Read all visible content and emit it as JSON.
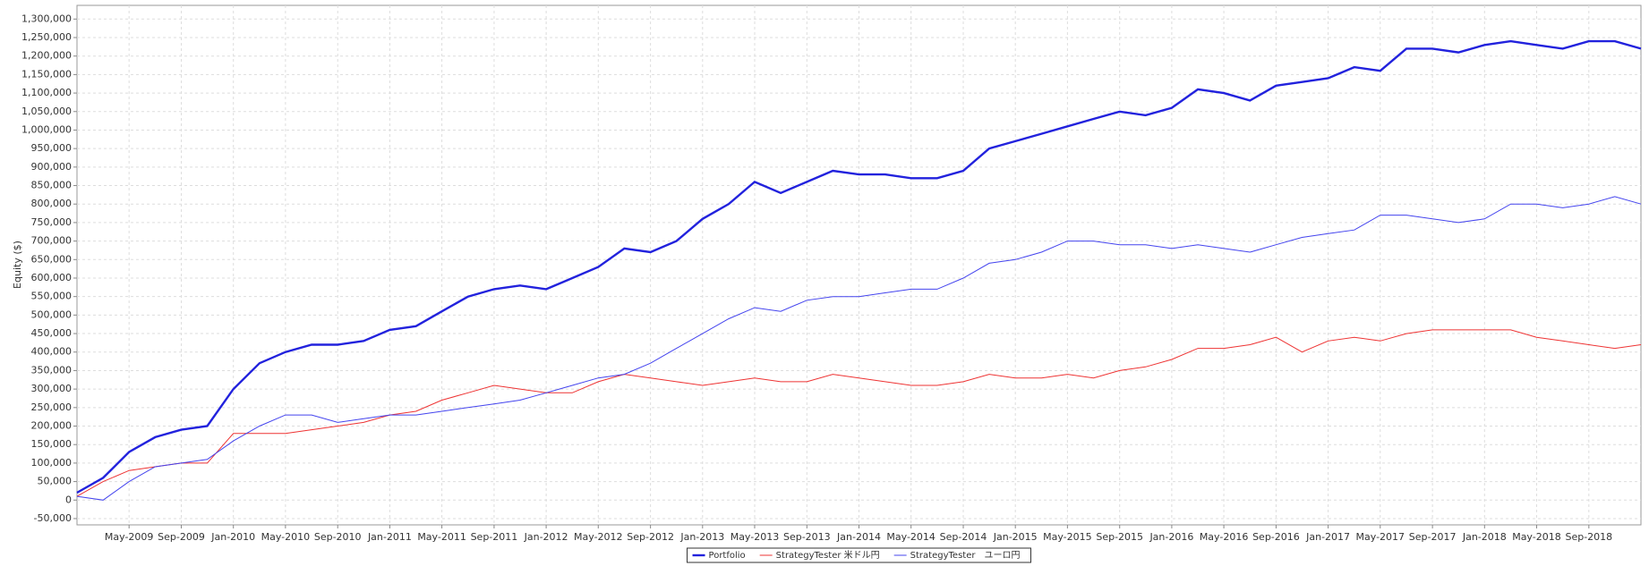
{
  "chart_data": {
    "type": "line",
    "y_label": "Equity ($)",
    "grid": true,
    "legend": "bottom",
    "xlim": [
      2009.0,
      2019.0
    ],
    "ylim": [
      -67000,
      1337000
    ],
    "xticks": [
      {
        "value": 2009.333,
        "label": "May-2009"
      },
      {
        "value": 2009.667,
        "label": "Sep-2009"
      },
      {
        "value": 2010.0,
        "label": "Jan-2010"
      },
      {
        "value": 2010.333,
        "label": "May-2010"
      },
      {
        "value": 2010.667,
        "label": "Sep-2010"
      },
      {
        "value": 2011.0,
        "label": "Jan-2011"
      },
      {
        "value": 2011.333,
        "label": "May-2011"
      },
      {
        "value": 2011.667,
        "label": "Sep-2011"
      },
      {
        "value": 2012.0,
        "label": "Jan-2012"
      },
      {
        "value": 2012.333,
        "label": "May-2012"
      },
      {
        "value": 2012.667,
        "label": "Sep-2012"
      },
      {
        "value": 2013.0,
        "label": "Jan-2013"
      },
      {
        "value": 2013.333,
        "label": "May-2013"
      },
      {
        "value": 2013.667,
        "label": "Sep-2013"
      },
      {
        "value": 2014.0,
        "label": "Jan-2014"
      },
      {
        "value": 2014.333,
        "label": "May-2014"
      },
      {
        "value": 2014.667,
        "label": "Sep-2014"
      },
      {
        "value": 2015.0,
        "label": "Jan-2015"
      },
      {
        "value": 2015.333,
        "label": "May-2015"
      },
      {
        "value": 2015.667,
        "label": "Sep-2015"
      },
      {
        "value": 2016.0,
        "label": "Jan-2016"
      },
      {
        "value": 2016.333,
        "label": "May-2016"
      },
      {
        "value": 2016.667,
        "label": "Sep-2016"
      },
      {
        "value": 2017.0,
        "label": "Jan-2017"
      },
      {
        "value": 2017.333,
        "label": "May-2017"
      },
      {
        "value": 2017.667,
        "label": "Sep-2017"
      },
      {
        "value": 2018.0,
        "label": "Jan-2018"
      },
      {
        "value": 2018.333,
        "label": "May-2018"
      },
      {
        "value": 2018.667,
        "label": "Sep-2018"
      }
    ],
    "yticks": [
      {
        "value": -50000,
        "label": "-50,000"
      },
      0,
      {
        "value": 50000,
        "label": "50,000"
      },
      {
        "value": 100000,
        "label": "100,000"
      },
      {
        "value": 150000,
        "label": "150,000"
      },
      {
        "value": 200000,
        "label": "200,000"
      },
      {
        "value": 250000,
        "label": "250,000"
      },
      {
        "value": 300000,
        "label": "300,000"
      },
      {
        "value": 350000,
        "label": "350,000"
      },
      {
        "value": 400000,
        "label": "400,000"
      },
      {
        "value": 450000,
        "label": "450,000"
      },
      {
        "value": 500000,
        "label": "500,000"
      },
      {
        "value": 550000,
        "label": "550,000"
      },
      {
        "value": 600000,
        "label": "600,000"
      },
      {
        "value": 650000,
        "label": "650,000"
      },
      {
        "value": 700000,
        "label": "700,000"
      },
      {
        "value": 750000,
        "label": "750,000"
      },
      {
        "value": 800000,
        "label": "800,000"
      },
      {
        "value": 850000,
        "label": "850,000"
      },
      {
        "value": 900000,
        "label": "900,000"
      },
      {
        "value": 950000,
        "label": "950,000"
      },
      {
        "value": 1000000,
        "label": "1,000,000"
      },
      {
        "value": 1050000,
        "label": "1,050,000"
      },
      {
        "value": 1100000,
        "label": "1,100,000"
      },
      {
        "value": 1150000,
        "label": "1,150,000"
      },
      {
        "value": 1200000,
        "label": "1,200,000"
      },
      {
        "value": 1250000,
        "label": "1,250,000"
      },
      {
        "value": 1300000,
        "label": "1,300,000"
      }
    ],
    "x": [
      2009.0,
      2009.167,
      2009.333,
      2009.5,
      2009.667,
      2009.833,
      2010.0,
      2010.167,
      2010.333,
      2010.5,
      2010.667,
      2010.833,
      2011.0,
      2011.167,
      2011.333,
      2011.5,
      2011.667,
      2011.833,
      2012.0,
      2012.167,
      2012.333,
      2012.5,
      2012.667,
      2012.833,
      2013.0,
      2013.167,
      2013.333,
      2013.5,
      2013.667,
      2013.833,
      2014.0,
      2014.167,
      2014.333,
      2014.5,
      2014.667,
      2014.833,
      2015.0,
      2015.167,
      2015.333,
      2015.5,
      2015.667,
      2015.833,
      2016.0,
      2016.167,
      2016.333,
      2016.5,
      2016.667,
      2016.833,
      2017.0,
      2017.167,
      2017.333,
      2017.5,
      2017.667,
      2017.833,
      2018.0,
      2018.167,
      2018.333,
      2018.5,
      2018.667,
      2018.833,
      2019.0
    ],
    "series": [
      {
        "name": "Portfolio",
        "color": "#2222dd",
        "width": 2.4,
        "values": [
          20000,
          60000,
          130000,
          170000,
          190000,
          200000,
          300000,
          370000,
          400000,
          420000,
          420000,
          430000,
          460000,
          470000,
          510000,
          550000,
          570000,
          580000,
          570000,
          600000,
          630000,
          680000,
          670000,
          700000,
          760000,
          800000,
          860000,
          830000,
          860000,
          890000,
          880000,
          880000,
          870000,
          870000,
          890000,
          950000,
          970000,
          990000,
          1010000,
          1030000,
          1050000,
          1040000,
          1060000,
          1110000,
          1100000,
          1080000,
          1120000,
          1130000,
          1140000,
          1170000,
          1160000,
          1220000,
          1220000,
          1210000,
          1230000,
          1240000,
          1230000,
          1220000,
          1240000,
          1240000,
          1220000
        ]
      },
      {
        "name": "StrategyTester 米ドル円",
        "color": "#ee3333",
        "width": 1,
        "values": [
          10000,
          50000,
          80000,
          90000,
          100000,
          100000,
          180000,
          180000,
          180000,
          190000,
          200000,
          210000,
          230000,
          240000,
          270000,
          290000,
          310000,
          300000,
          290000,
          290000,
          320000,
          340000,
          330000,
          320000,
          310000,
          320000,
          330000,
          320000,
          320000,
          340000,
          330000,
          320000,
          310000,
          310000,
          320000,
          340000,
          330000,
          330000,
          340000,
          330000,
          350000,
          360000,
          380000,
          410000,
          410000,
          420000,
          440000,
          400000,
          430000,
          440000,
          430000,
          450000,
          460000,
          460000,
          460000,
          460000,
          440000,
          430000,
          420000,
          410000,
          420000
        ]
      },
      {
        "name": "StrategyTester　ユーロ円",
        "color": "#4444ee",
        "width": 1,
        "values": [
          10000,
          0,
          50000,
          90000,
          100000,
          110000,
          160000,
          200000,
          230000,
          230000,
          210000,
          220000,
          230000,
          230000,
          240000,
          250000,
          260000,
          270000,
          290000,
          310000,
          330000,
          340000,
          370000,
          410000,
          450000,
          490000,
          520000,
          510000,
          540000,
          550000,
          550000,
          560000,
          570000,
          570000,
          600000,
          640000,
          650000,
          670000,
          700000,
          700000,
          690000,
          690000,
          680000,
          690000,
          680000,
          670000,
          690000,
          710000,
          720000,
          730000,
          770000,
          770000,
          760000,
          750000,
          760000,
          800000,
          800000,
          790000,
          800000,
          820000,
          800000
        ]
      }
    ]
  }
}
